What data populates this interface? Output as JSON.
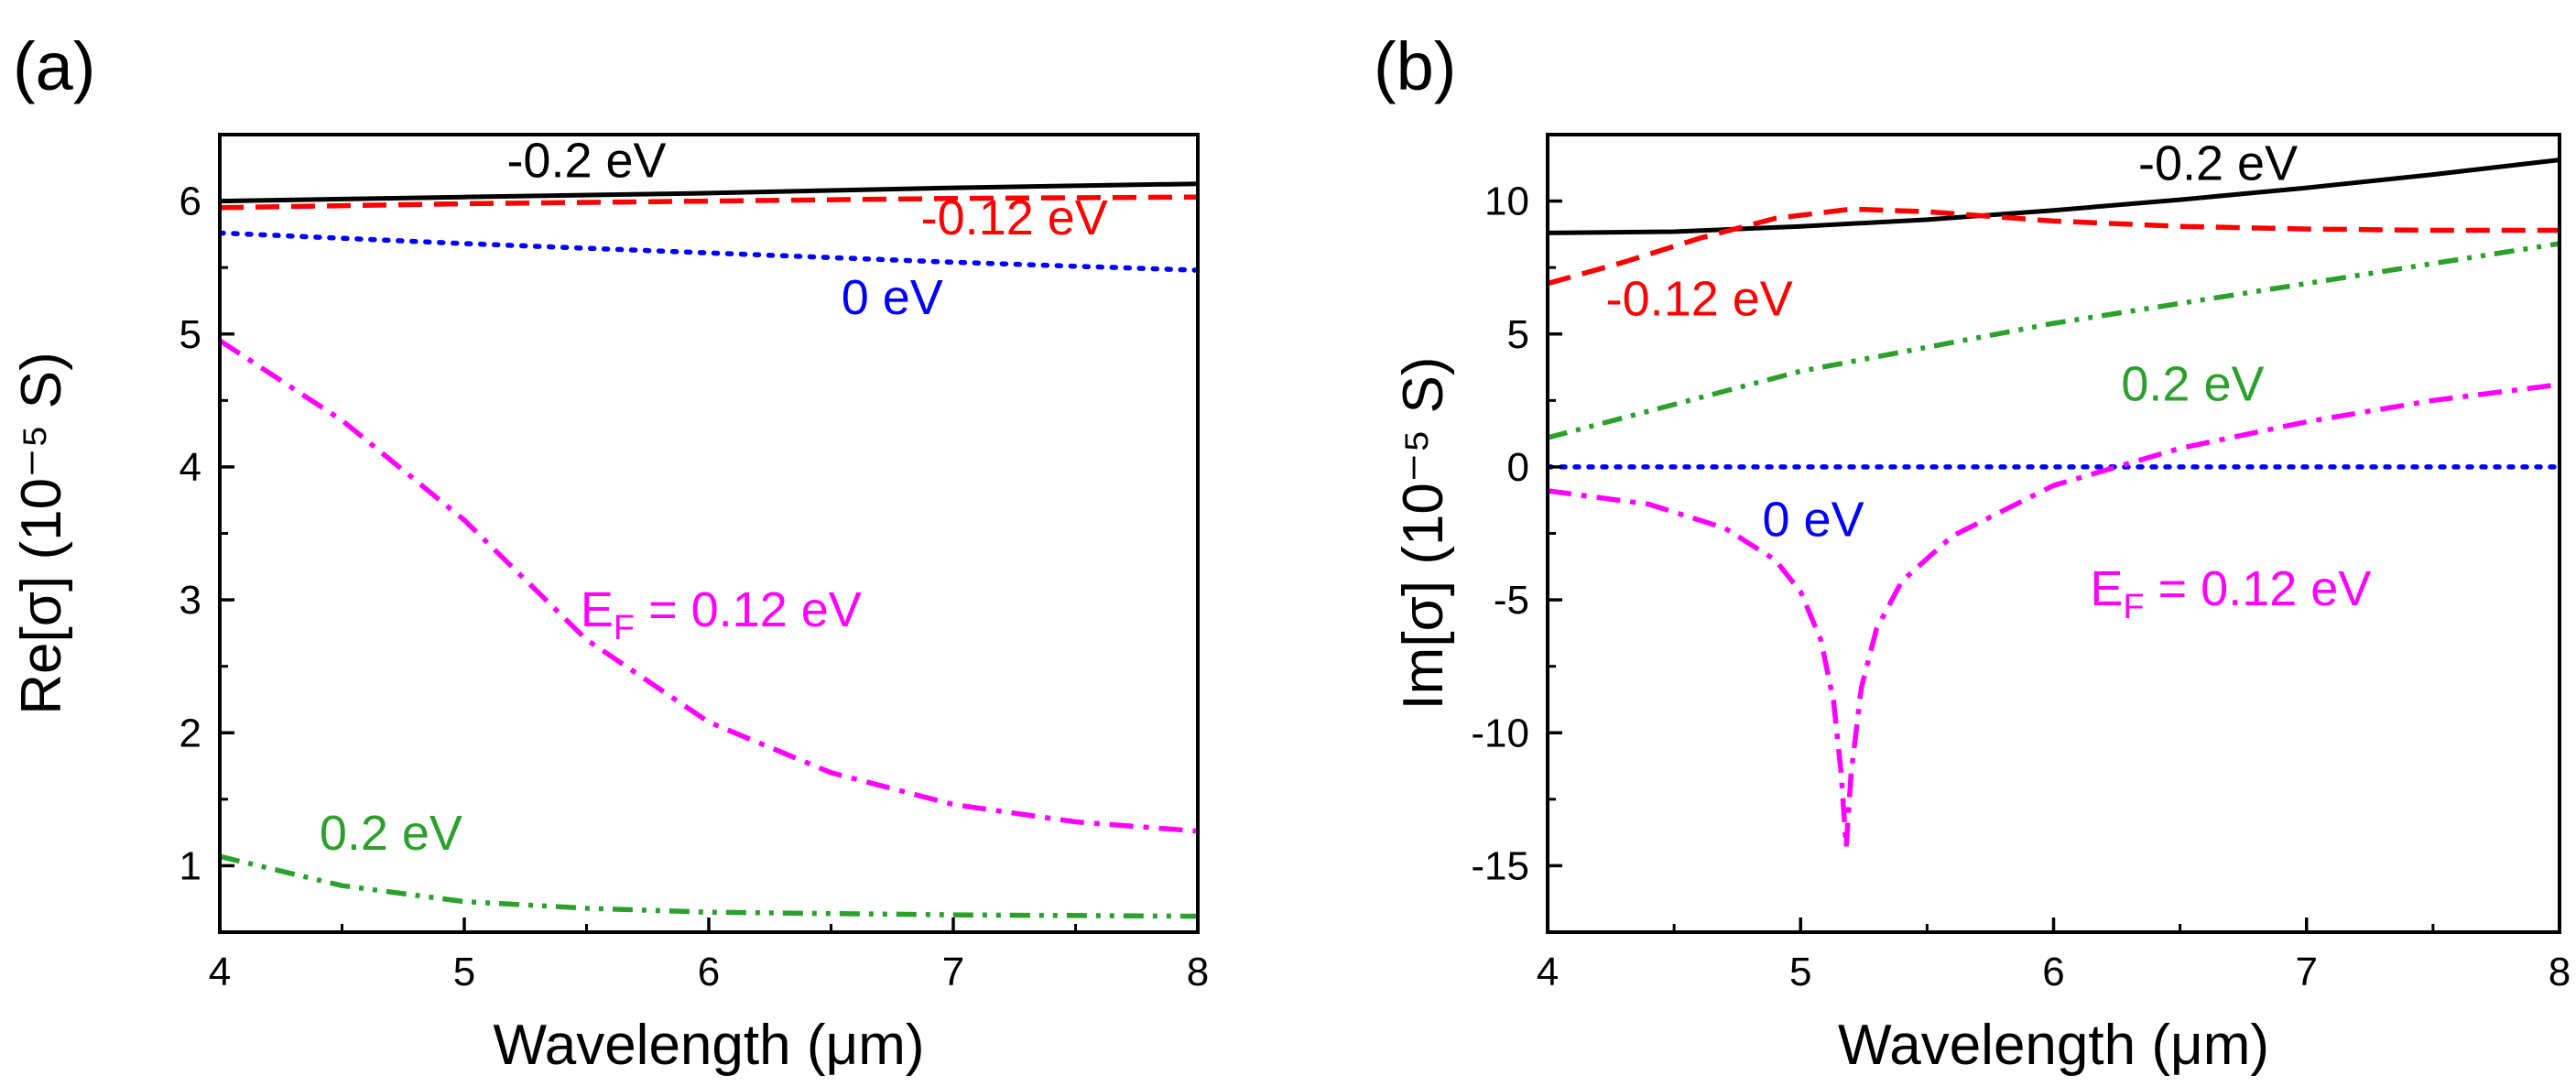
{
  "chart_data": [
    {
      "type": "line",
      "panel_label": "(a)",
      "xlabel": "Wavelength (μm)",
      "ylabel": "Re[σ] (10⁻⁵ S)",
      "xlim": [
        4,
        8
      ],
      "ylim": [
        0.5,
        6.5
      ],
      "xticks": [
        "4",
        "5",
        "6",
        "7",
        "8"
      ],
      "yticks": [
        "1",
        "2",
        "3",
        "4",
        "5",
        "6"
      ],
      "series": [
        {
          "name": "-0.2 eV",
          "color": "#000000",
          "style": "solid",
          "x": [
            4,
            5,
            6,
            7,
            8
          ],
          "y": [
            6.0,
            6.03,
            6.06,
            6.1,
            6.13
          ]
        },
        {
          "name": "-0.12 eV",
          "color": "#ff0000",
          "style": "dash",
          "x": [
            4,
            5,
            6,
            7,
            8
          ],
          "y": [
            5.95,
            5.98,
            6.0,
            6.02,
            6.03
          ]
        },
        {
          "name": "0 eV",
          "color": "#0000ff",
          "style": "dot",
          "x": [
            4,
            5,
            6,
            7,
            8
          ],
          "y": [
            5.76,
            5.68,
            5.61,
            5.54,
            5.48
          ]
        },
        {
          "name": "E_F = 0.12 eV",
          "color": "#ff00ff",
          "style": "dashdot",
          "x": [
            4,
            4.5,
            5,
            5.5,
            6,
            6.5,
            7,
            7.5,
            8
          ],
          "y": [
            4.95,
            4.35,
            3.6,
            2.7,
            2.08,
            1.7,
            1.46,
            1.33,
            1.26
          ]
        },
        {
          "name": "0.2 eV",
          "color": "#2ca02c",
          "style": "dashdotdot",
          "x": [
            4,
            4.5,
            5,
            5.5,
            6,
            7,
            8
          ],
          "y": [
            1.07,
            0.85,
            0.73,
            0.68,
            0.65,
            0.63,
            0.62
          ]
        }
      ],
      "labels": [
        {
          "text": "-0.2 eV",
          "color": "#000000",
          "at": [
            5.5,
            6.18
          ]
        },
        {
          "text": "-0.12 eV",
          "color": "#ff0000",
          "at": [
            7.25,
            5.75
          ]
        },
        {
          "text": "0 eV",
          "color": "#0000ff",
          "at": [
            6.75,
            5.15
          ]
        },
        {
          "text": "E",
          "sub": "F",
          "rest": " = 0.12 eV",
          "color": "#ff00ff",
          "at": [
            6.05,
            2.8
          ]
        },
        {
          "text": "0.2 eV",
          "color": "#2ca02c",
          "at": [
            4.7,
            1.12
          ]
        }
      ]
    },
    {
      "type": "line",
      "panel_label": "(b)",
      "xlabel": "Wavelength (μm)",
      "ylabel": "Im[σ] (10⁻⁵ S)",
      "xlim": [
        4,
        8
      ],
      "ylim": [
        -17.5,
        12.5
      ],
      "xticks": [
        "4",
        "5",
        "6",
        "7",
        "8"
      ],
      "yticks": [
        "-15",
        "-10",
        "-5",
        "0",
        "5",
        "10"
      ],
      "series": [
        {
          "name": "-0.2 eV",
          "color": "#000000",
          "style": "solid",
          "x": [
            4,
            4.5,
            5,
            5.5,
            6,
            6.5,
            7,
            7.5,
            8
          ],
          "y": [
            8.8,
            8.85,
            9.05,
            9.3,
            9.65,
            10.05,
            10.5,
            11.0,
            11.55
          ]
        },
        {
          "name": "-0.12 eV",
          "color": "#ff0000",
          "style": "dash",
          "x": [
            4,
            4.3,
            4.6,
            4.9,
            5.2,
            5.5,
            6,
            6.5,
            7,
            7.5,
            8
          ],
          "y": [
            6.9,
            7.7,
            8.6,
            9.35,
            9.7,
            9.6,
            9.25,
            9.05,
            8.95,
            8.9,
            8.9
          ]
        },
        {
          "name": "0 eV",
          "color": "#0000ff",
          "style": "dot",
          "x": [
            4,
            8
          ],
          "y": [
            0,
            0
          ]
        },
        {
          "name": "E_F = 0.12 eV",
          "color": "#ff00ff",
          "style": "dashdot",
          "x": [
            4,
            4.4,
            4.7,
            4.9,
            5.0,
            5.08,
            5.13,
            5.16,
            5.18,
            5.2,
            5.24,
            5.3,
            5.4,
            5.6,
            6.0,
            6.5,
            7.0,
            7.5,
            8.0
          ],
          "y": [
            -0.9,
            -1.4,
            -2.3,
            -3.5,
            -4.7,
            -6.5,
            -8.8,
            -11.5,
            -14.3,
            -11.5,
            -8.3,
            -6.1,
            -4.3,
            -2.6,
            -0.7,
            0.7,
            1.7,
            2.5,
            3.1
          ]
        },
        {
          "name": "0.2 eV",
          "color": "#2ca02c",
          "style": "dashdotdot",
          "x": [
            4,
            5,
            6,
            7,
            8
          ],
          "y": [
            1.1,
            3.6,
            5.4,
            6.9,
            8.4
          ]
        }
      ],
      "labels": [
        {
          "text": "-0.2 eV",
          "color": "#000000",
          "at": [
            6.65,
            10.8
          ]
        },
        {
          "text": "-0.12 eV",
          "color": "#ff0000",
          "at": [
            4.6,
            5.7
          ]
        },
        {
          "text": "0.2 eV",
          "color": "#2ca02c",
          "at": [
            6.55,
            2.5
          ]
        },
        {
          "text": "0 eV",
          "color": "#0000ff",
          "at": [
            5.05,
            -2.6
          ]
        },
        {
          "text": "E",
          "sub": "F",
          "rest": " = 0.12 eV",
          "color": "#ff00ff",
          "at": [
            6.7,
            -5.2
          ]
        }
      ]
    }
  ]
}
